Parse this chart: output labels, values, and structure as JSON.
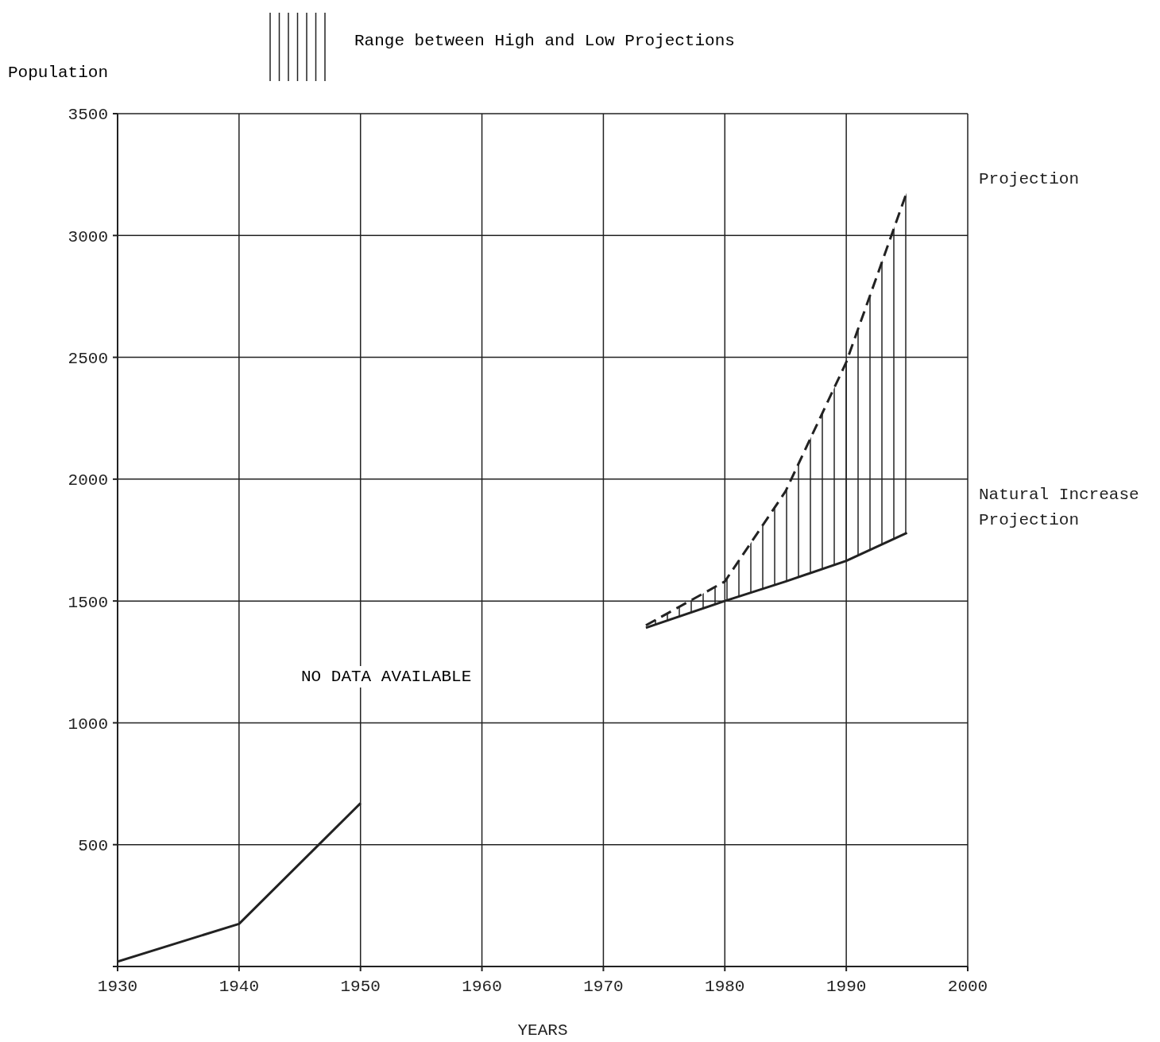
{
  "chart_data": {
    "type": "line",
    "xlabel": "YEARS",
    "ylabel": "Population",
    "legend_title": "Range between High and Low Projections",
    "xlim": [
      1930,
      2000
    ],
    "xticks": [
      1930,
      1940,
      1950,
      1960,
      1970,
      1980,
      1990,
      2000
    ],
    "ylim": [
      0,
      3500
    ],
    "yticks": [
      {
        "value": 0,
        "label": null
      },
      500,
      1000,
      1500,
      2000,
      2500,
      3000,
      3500
    ],
    "grid": true,
    "marker": "none",
    "legend": "top",
    "annotations": [
      "NO DATA AVAILABLE"
    ],
    "series": [
      {
        "color": "#222222",
        "line_style": "solid",
        "x": [
          1930,
          1940,
          1950
        ],
        "values": [
          20,
          175,
          670
        ]
      },
      {
        "name": "Projection",
        "color": "#222222",
        "line_style": "dashed",
        "x": [
          1973.5,
          1980,
          1985,
          1990,
          1995
        ],
        "values": [
          1400,
          1580,
          1950,
          2480,
          3180
        ],
        "lower": [
          1390,
          1500,
          1580,
          1665,
          1780
        ],
        "upper": [
          1400,
          1580,
          1950,
          2480,
          3180
        ]
      },
      {
        "name": "Natural Increase Projection",
        "color": "#222222",
        "line_style": "solid",
        "x": [
          1973.5,
          1980,
          1985,
          1990,
          1995
        ],
        "values": [
          1390,
          1500,
          1580,
          1665,
          1780
        ]
      }
    ]
  }
}
